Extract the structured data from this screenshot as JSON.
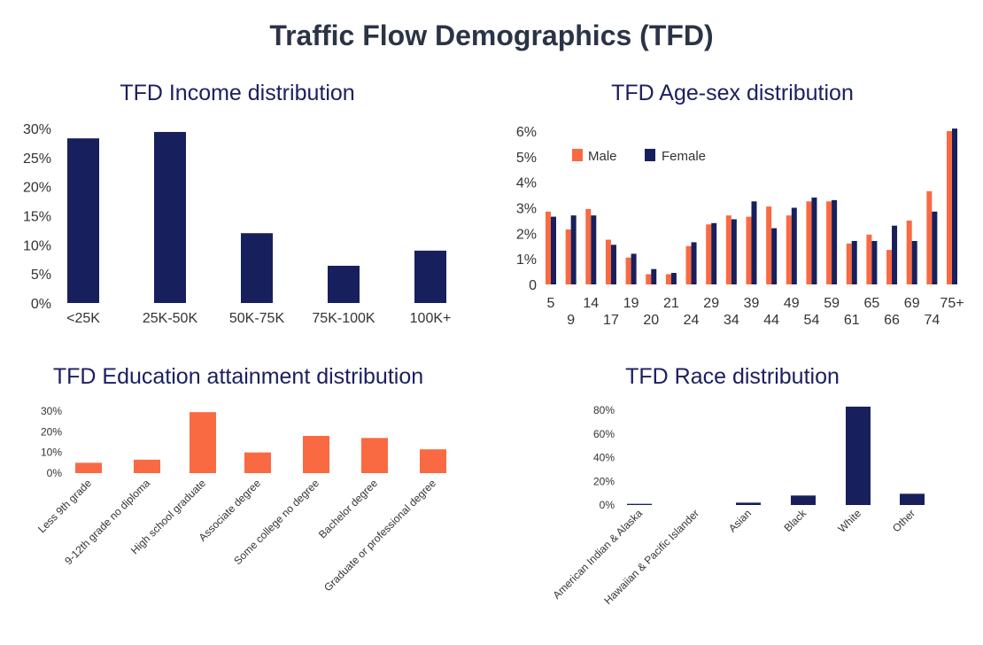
{
  "page": {
    "title": "Traffic Flow Demographics (TFD)"
  },
  "colors": {
    "navy": "#17205c",
    "orange": "#f96a43",
    "text": "#333333",
    "title": "#1c2060"
  },
  "chart_data": [
    {
      "id": "income",
      "type": "bar",
      "title": "TFD Income distribution",
      "categories": [
        "<25K",
        "25K-50K",
        "50K-75K",
        "75K-100K",
        "100K+"
      ],
      "values": [
        28.3,
        29.4,
        12.0,
        6.4,
        9.0
      ],
      "ylim": [
        0,
        30
      ],
      "yticks": [
        "0%",
        "5%",
        "10%",
        "15%",
        "20%",
        "25%",
        "30%"
      ],
      "color": "#17205c"
    },
    {
      "id": "agesex",
      "type": "bar",
      "title": "TFD Age-sex distribution",
      "categories": [
        "5",
        "9",
        "14",
        "17",
        "19",
        "20",
        "21",
        "24",
        "29",
        "34",
        "39",
        "44",
        "49",
        "54",
        "59",
        "61",
        "65",
        "66",
        "69",
        "74",
        "75+"
      ],
      "series": [
        {
          "name": "Male",
          "color": "#f96a43",
          "values": [
            2.85,
            2.15,
            2.95,
            1.75,
            1.05,
            0.4,
            0.4,
            1.5,
            2.35,
            2.7,
            2.65,
            3.05,
            2.7,
            3.25,
            3.25,
            1.6,
            1.95,
            1.35,
            2.5,
            3.65,
            6.0
          ]
        },
        {
          "name": "Female",
          "color": "#17205c",
          "values": [
            2.65,
            2.7,
            2.7,
            1.55,
            1.2,
            0.6,
            0.45,
            1.65,
            2.4,
            2.55,
            3.25,
            2.2,
            3.0,
            3.4,
            3.3,
            1.7,
            1.7,
            2.3,
            1.7,
            2.85,
            6.1
          ]
        }
      ],
      "ylim": [
        0,
        6
      ],
      "yticks": [
        "0",
        "1%",
        "2%",
        "3%",
        "4%",
        "5%",
        "6%"
      ],
      "legend": "top-left"
    },
    {
      "id": "education",
      "type": "bar",
      "title": "TFD Education attainment distribution",
      "categories": [
        "Less 9th grade",
        "9-12th grade no diploma",
        "High school graduate",
        "Associate degree",
        "Some college no degree",
        "Bachelor degree",
        "Graduate or professional degree"
      ],
      "values": [
        5.0,
        6.5,
        29.5,
        10.0,
        18.0,
        17.0,
        11.5
      ],
      "ylim": [
        0,
        30
      ],
      "yticks": [
        "0%",
        "10%",
        "20%",
        "30%"
      ],
      "color": "#f96a43"
    },
    {
      "id": "race",
      "type": "bar",
      "title": "TFD Race distribution",
      "categories": [
        "American Indian & Alaska",
        "Hawaiian & Pacific Islander",
        "Asian",
        "Black",
        "White",
        "Other"
      ],
      "values": [
        1.0,
        0.0,
        2.0,
        8.0,
        83.0,
        9.5
      ],
      "ylim": [
        0,
        80
      ],
      "yticks": [
        "0%",
        "20%",
        "40%",
        "60%",
        "80%"
      ],
      "color": "#17205c"
    }
  ]
}
